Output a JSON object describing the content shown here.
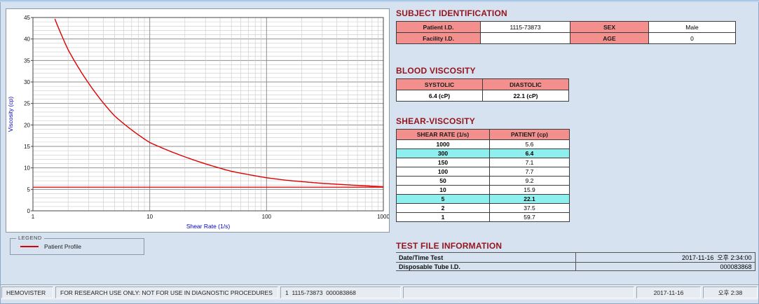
{
  "colors": {
    "heading": "#96131c",
    "pink": "#f3908d",
    "cyan": "#8ef0ee",
    "curve": "#dd0000",
    "axis_label": "#0000c8"
  },
  "chart_data": {
    "type": "line",
    "title": "",
    "xlabel": "Shear Rate (1/s)",
    "ylabel": "Viscosity (cp)",
    "x_scale": "log",
    "xlim": [
      1,
      1000
    ],
    "ylim": [
      0,
      45
    ],
    "x_major_ticks": [
      1,
      10,
      100,
      1000
    ],
    "y_major_ticks": [
      0,
      5,
      10,
      15,
      20,
      25,
      30,
      35,
      40,
      45
    ],
    "grid": true,
    "legend_position": "bottom-left-outside",
    "series": [
      {
        "name": "Patient Profile",
        "color": "#dd0000",
        "x": [
          1,
          2,
          5,
          10,
          50,
          100,
          150,
          300,
          1000
        ],
        "y": [
          59.7,
          37.5,
          22.1,
          15.9,
          9.2,
          7.7,
          7.1,
          6.4,
          5.6
        ]
      }
    ],
    "baseline": 5.5
  },
  "legend": {
    "title": "LEGEND",
    "items": [
      {
        "label": "Patient Profile",
        "color": "#dd0000"
      }
    ]
  },
  "subject": {
    "heading": "SUBJECT IDENTIFICATION",
    "rows": [
      {
        "label1": "Patient I.D.",
        "value1": "1115-73873",
        "label2": "SEX",
        "value2": "Male"
      },
      {
        "label1": "Facility I.D.",
        "value1": "",
        "label2": "AGE",
        "value2": "0"
      }
    ]
  },
  "blood_viscosity": {
    "heading": "BLOOD VISCOSITY",
    "columns": [
      "SYSTOLIC",
      "DIASTOLIC"
    ],
    "values": [
      "6.4 (cP)",
      "22.1 (cP)"
    ]
  },
  "shear_viscosity": {
    "heading": "SHEAR-VISCOSITY",
    "columns": [
      "SHEAR RATE (1/s)",
      "PATIENT (cp)"
    ],
    "rows": [
      {
        "rate": "1000",
        "value": "5.6",
        "highlight": false
      },
      {
        "rate": "300",
        "value": "6.4",
        "highlight": true
      },
      {
        "rate": "150",
        "value": "7.1",
        "highlight": false
      },
      {
        "rate": "100",
        "value": "7.7",
        "highlight": false
      },
      {
        "rate": "50",
        "value": "9.2",
        "highlight": false
      },
      {
        "rate": "10",
        "value": "15.9",
        "highlight": false
      },
      {
        "rate": "5",
        "value": "22.1",
        "highlight": true
      },
      {
        "rate": "2",
        "value": "37.5",
        "highlight": false
      },
      {
        "rate": "1",
        "value": "59.7",
        "highlight": false
      }
    ]
  },
  "test_file": {
    "heading": "TEST FILE INFORMATION",
    "rows": [
      {
        "label": "Date/Time Test",
        "value": "2017-11-16  오후 2:34:00"
      },
      {
        "label": "Disposable Tube I.D.",
        "value": "000083868"
      }
    ]
  },
  "status_bar": {
    "app_name": "HEMOVISTER",
    "notice": "FOR RESEARCH USE ONLY: NOT FOR USE IN DIAGNOSTIC PROCEDURES",
    "record": "1  1115-73873  000083868",
    "date": "2017-11-16",
    "time": "오후 2:38"
  }
}
